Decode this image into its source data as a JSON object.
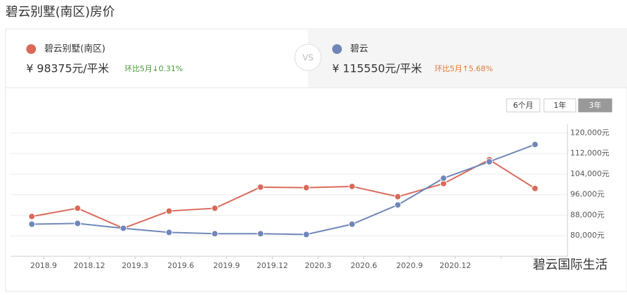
{
  "header": {
    "title": "碧云别墅(南区)房价"
  },
  "cards": [
    {
      "price": "¥ 98375元/平米",
      "change": "环比5月↓0.31%"
    },
    {
      "price": "¥ 115550元/平米",
      "change": "环比5月↑5.68%"
    }
  ],
  "vs": "VS",
  "ranges": [
    "6个月",
    "1年",
    "3年"
  ],
  "watermark": "碧云国际生活",
  "chart_data": {
    "type": "line",
    "categories": [
      "2018.9",
      "2018.12",
      "2019.3",
      "2019.6",
      "2019.9",
      "2019.12",
      "2020.3",
      "2020.6",
      "2020.9",
      "2020.12",
      null,
      null
    ],
    "series": [
      {
        "name": "碧云别墅(南区)",
        "color": "#d9695a",
        "values": [
          87500,
          90700,
          82900,
          89600,
          90700,
          98900,
          98700,
          99200,
          95200,
          100300,
          109600,
          98400
        ]
      },
      {
        "name": "碧云",
        "color": "#6f86b8",
        "values": [
          84500,
          84800,
          82900,
          81300,
          80800,
          80800,
          80500,
          84500,
          92000,
          102400,
          108800,
          115500
        ]
      }
    ],
    "ylim": [
      72000,
      122000
    ],
    "yticks": [
      {
        "value": 80000,
        "label": "80,000元"
      },
      {
        "value": 88000,
        "label": "88,000元"
      },
      {
        "value": 96000,
        "label": "96,000元"
      },
      {
        "value": 104000,
        "label": "104,000元"
      },
      {
        "value": 112000,
        "label": "112,000元"
      },
      {
        "value": 120000,
        "label": "120,000元"
      }
    ],
    "grid": true
  }
}
